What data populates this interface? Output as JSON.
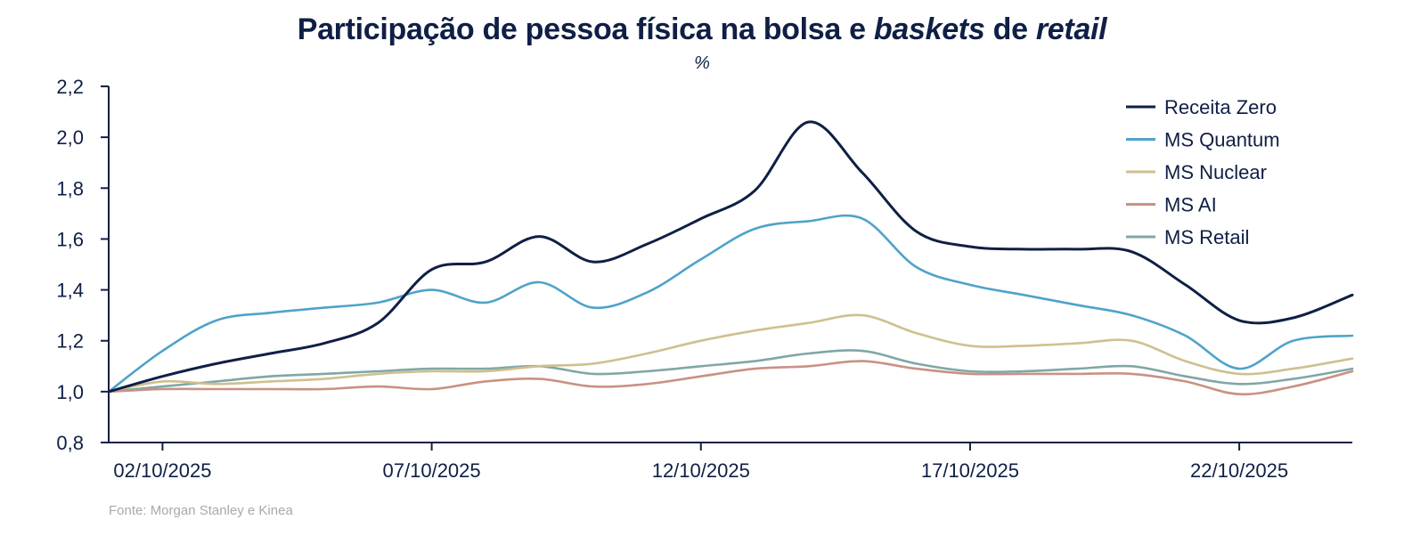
{
  "title": {
    "part1": "Participação de pessoa física na bolsa e ",
    "part2": "baskets",
    "part3": " de ",
    "part4": "retail"
  },
  "subtitle": "%",
  "source": "Fonte: Morgan Stanley e Kinea",
  "chart_data": {
    "type": "line",
    "title": "Participação de pessoa física na bolsa e baskets de retail",
    "subtitle": "%",
    "xlabel": "",
    "ylabel": "",
    "x_tick_labels": [
      "02/10/2025",
      "07/10/2025",
      "12/10/2025",
      "17/10/2025",
      "22/10/2025"
    ],
    "x_tick_days": [
      2,
      7,
      12,
      17,
      22
    ],
    "xlim": [
      1,
      24.1
    ],
    "ylim": [
      0.8,
      2.2
    ],
    "y_ticks": [
      0.8,
      1.0,
      1.2,
      1.4,
      1.6,
      1.8,
      2.0,
      2.2
    ],
    "y_tick_labels": [
      "0,8",
      "1,0",
      "1,2",
      "1,4",
      "1,6",
      "1,8",
      "2,0",
      "2,2"
    ],
    "legend_position": "top-right",
    "x": [
      1,
      2,
      3,
      4,
      5,
      6,
      7,
      8,
      9,
      10,
      11,
      12,
      13,
      14,
      15,
      16,
      17,
      18,
      19,
      20,
      21,
      22,
      23,
      24.1
    ],
    "series": [
      {
        "name": "Receita Zero",
        "color": "#0f1f45",
        "values": [
          1.0,
          1.06,
          1.11,
          1.15,
          1.19,
          1.27,
          1.48,
          1.51,
          1.61,
          1.51,
          1.58,
          1.68,
          1.79,
          2.06,
          1.86,
          1.63,
          1.57,
          1.56,
          1.56,
          1.55,
          1.42,
          1.28,
          1.29,
          1.38
        ]
      },
      {
        "name": "MS Quantum",
        "color": "#4ea3c9",
        "values": [
          1.0,
          1.16,
          1.28,
          1.31,
          1.33,
          1.35,
          1.4,
          1.35,
          1.43,
          1.33,
          1.39,
          1.52,
          1.64,
          1.67,
          1.68,
          1.49,
          1.42,
          1.38,
          1.34,
          1.3,
          1.22,
          1.09,
          1.2,
          1.22
        ]
      },
      {
        "name": "MS Nuclear",
        "color": "#cfc08e",
        "values": [
          1.0,
          1.04,
          1.03,
          1.04,
          1.05,
          1.07,
          1.08,
          1.08,
          1.1,
          1.11,
          1.15,
          1.2,
          1.24,
          1.27,
          1.3,
          1.23,
          1.18,
          1.18,
          1.19,
          1.2,
          1.12,
          1.07,
          1.09,
          1.13
        ]
      },
      {
        "name": "MS AI",
        "color": "#c99184",
        "values": [
          1.0,
          1.01,
          1.01,
          1.01,
          1.01,
          1.02,
          1.01,
          1.04,
          1.05,
          1.02,
          1.03,
          1.06,
          1.09,
          1.1,
          1.12,
          1.09,
          1.07,
          1.07,
          1.07,
          1.07,
          1.04,
          0.99,
          1.02,
          1.08
        ]
      },
      {
        "name": "MS Retail",
        "color": "#7fa7a5",
        "values": [
          1.0,
          1.02,
          1.04,
          1.06,
          1.07,
          1.08,
          1.09,
          1.09,
          1.1,
          1.07,
          1.08,
          1.1,
          1.12,
          1.15,
          1.16,
          1.11,
          1.08,
          1.08,
          1.09,
          1.1,
          1.06,
          1.03,
          1.05,
          1.09
        ]
      }
    ]
  }
}
